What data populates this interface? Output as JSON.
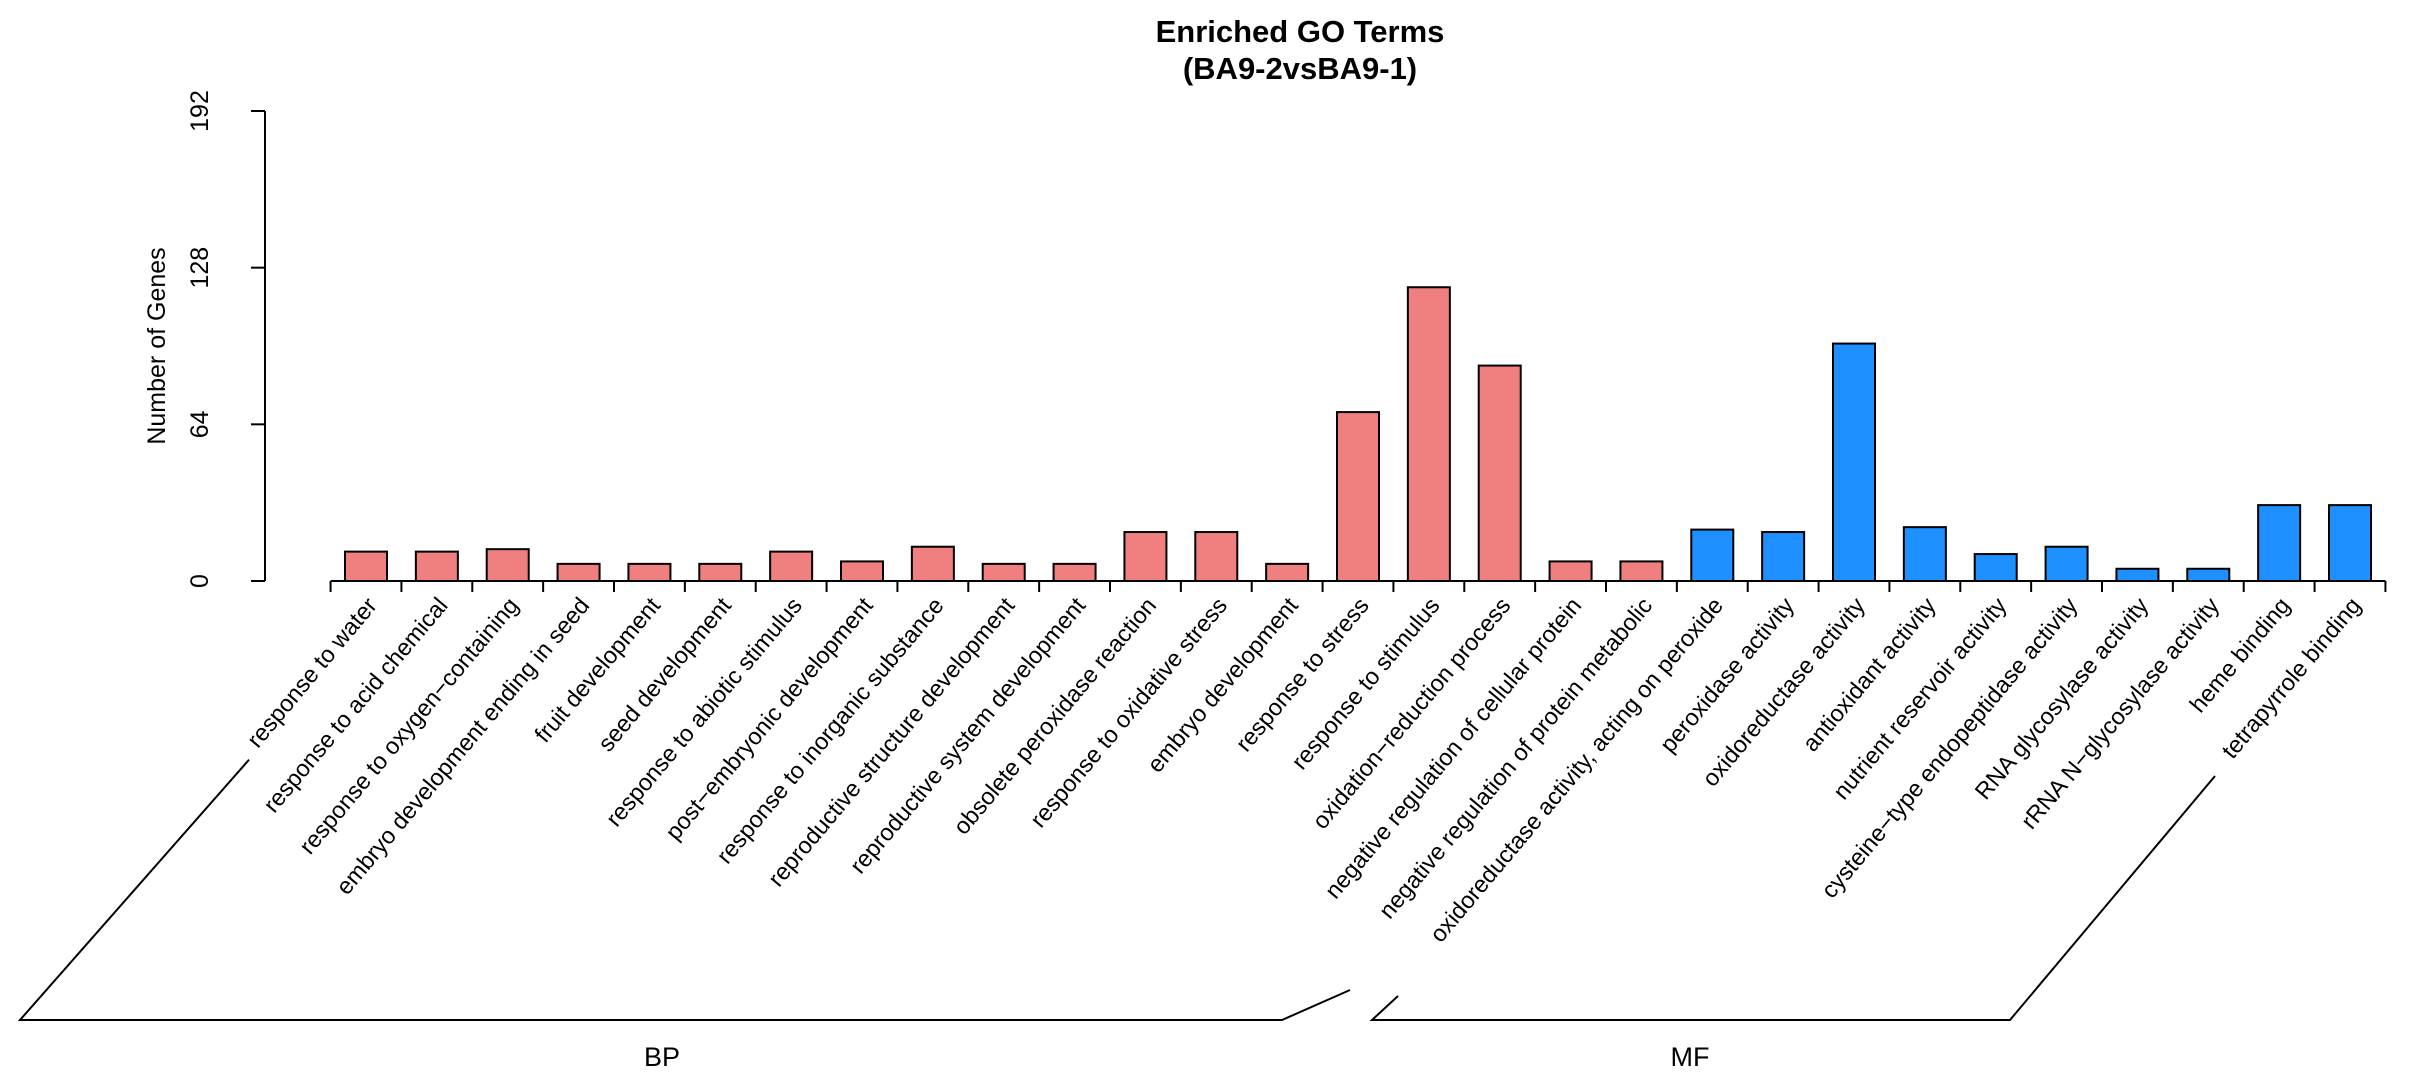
{
  "chart_data": {
    "type": "bar",
    "title_line1": "Enriched GO Terms",
    "title_line2": "(BA9-2vsBA9-1)",
    "ylabel": "Number of Genes",
    "xlabel": "",
    "ylim": [
      0,
      192
    ],
    "yticks": [
      0,
      64,
      128,
      192
    ],
    "categories": [
      "response to water",
      "response to acid chemical",
      "response to oxygen−containing",
      "embryo development ending in seed",
      "fruit development",
      "seed development",
      "response to abiotic stimulus",
      "post−embryonic development",
      "response to inorganic substance",
      "reproductive structure development",
      "reproductive system development",
      "obsolete peroxidase reaction",
      "response to oxidative stress",
      "embryo development",
      "response to stress",
      "response to stimulus",
      "oxidation−reduction process",
      "negative regulation of cellular protein",
      "negative regulation of protein metabolic",
      "oxidoreductase activity, acting on peroxide",
      "peroxidase activity",
      "oxidoreductase activity",
      "antioxidant activity",
      "nutrient reservoir activity",
      "cysteine−type endopeptidase activity",
      "RNA glycosylase activity",
      "rRNA N−glycosylase activity",
      "heme binding",
      "tetrapyrrole binding"
    ],
    "values": [
      12,
      12,
      13,
      7,
      7,
      7,
      12,
      8,
      14,
      7,
      7,
      20,
      20,
      7,
      69,
      120,
      88,
      8,
      8,
      21,
      20,
      97,
      22,
      11,
      14,
      5,
      5,
      31,
      31
    ],
    "groups": [
      {
        "name": "BP",
        "start": 0,
        "end": 18,
        "color": "#F08080"
      },
      {
        "name": "MF",
        "start": 19,
        "end": 28,
        "color": "#1E90FF"
      }
    ],
    "grid": false,
    "legend": "none"
  }
}
